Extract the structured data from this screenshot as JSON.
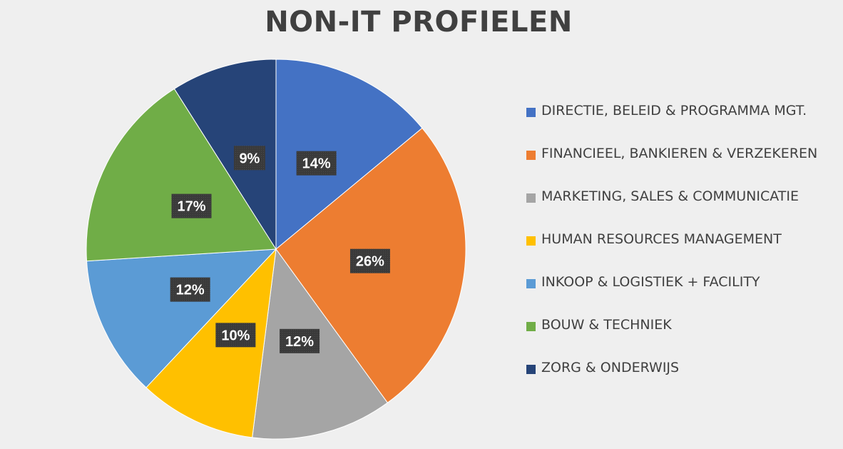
{
  "chart_data": {
    "type": "pie",
    "title": "NON-IT PROFIELEN",
    "start_angle_deg": 0,
    "direction": "clockwise",
    "legend_position": "right",
    "slices": [
      {
        "label": "DIRECTIE, BELEID & PROGRAMMA MGT.",
        "value": 14,
        "display": "14%",
        "color": "#4472c4"
      },
      {
        "label": "FINANCIEEL, BANKIEREN & VERZEKEREN",
        "value": 26,
        "display": "26%",
        "color": "#ed7d31"
      },
      {
        "label": "MARKETING, SALES & COMMUNICATIE",
        "value": 12,
        "display": "12%",
        "color": "#a5a5a5"
      },
      {
        "label": "HUMAN RESOURCES MANAGEMENT",
        "value": 10,
        "display": "10%",
        "color": "#ffc000"
      },
      {
        "label": "INKOOP & LOGISTIEK + FACILITY",
        "value": 12,
        "display": "12%",
        "color": "#5b9bd5"
      },
      {
        "label": "BOUW & TECHNIEK",
        "value": 17,
        "display": "17%",
        "color": "#70ad47"
      },
      {
        "label": "ZORG & ONDERWIJS",
        "value": 9,
        "display": "9%",
        "color": "#264478"
      }
    ]
  }
}
